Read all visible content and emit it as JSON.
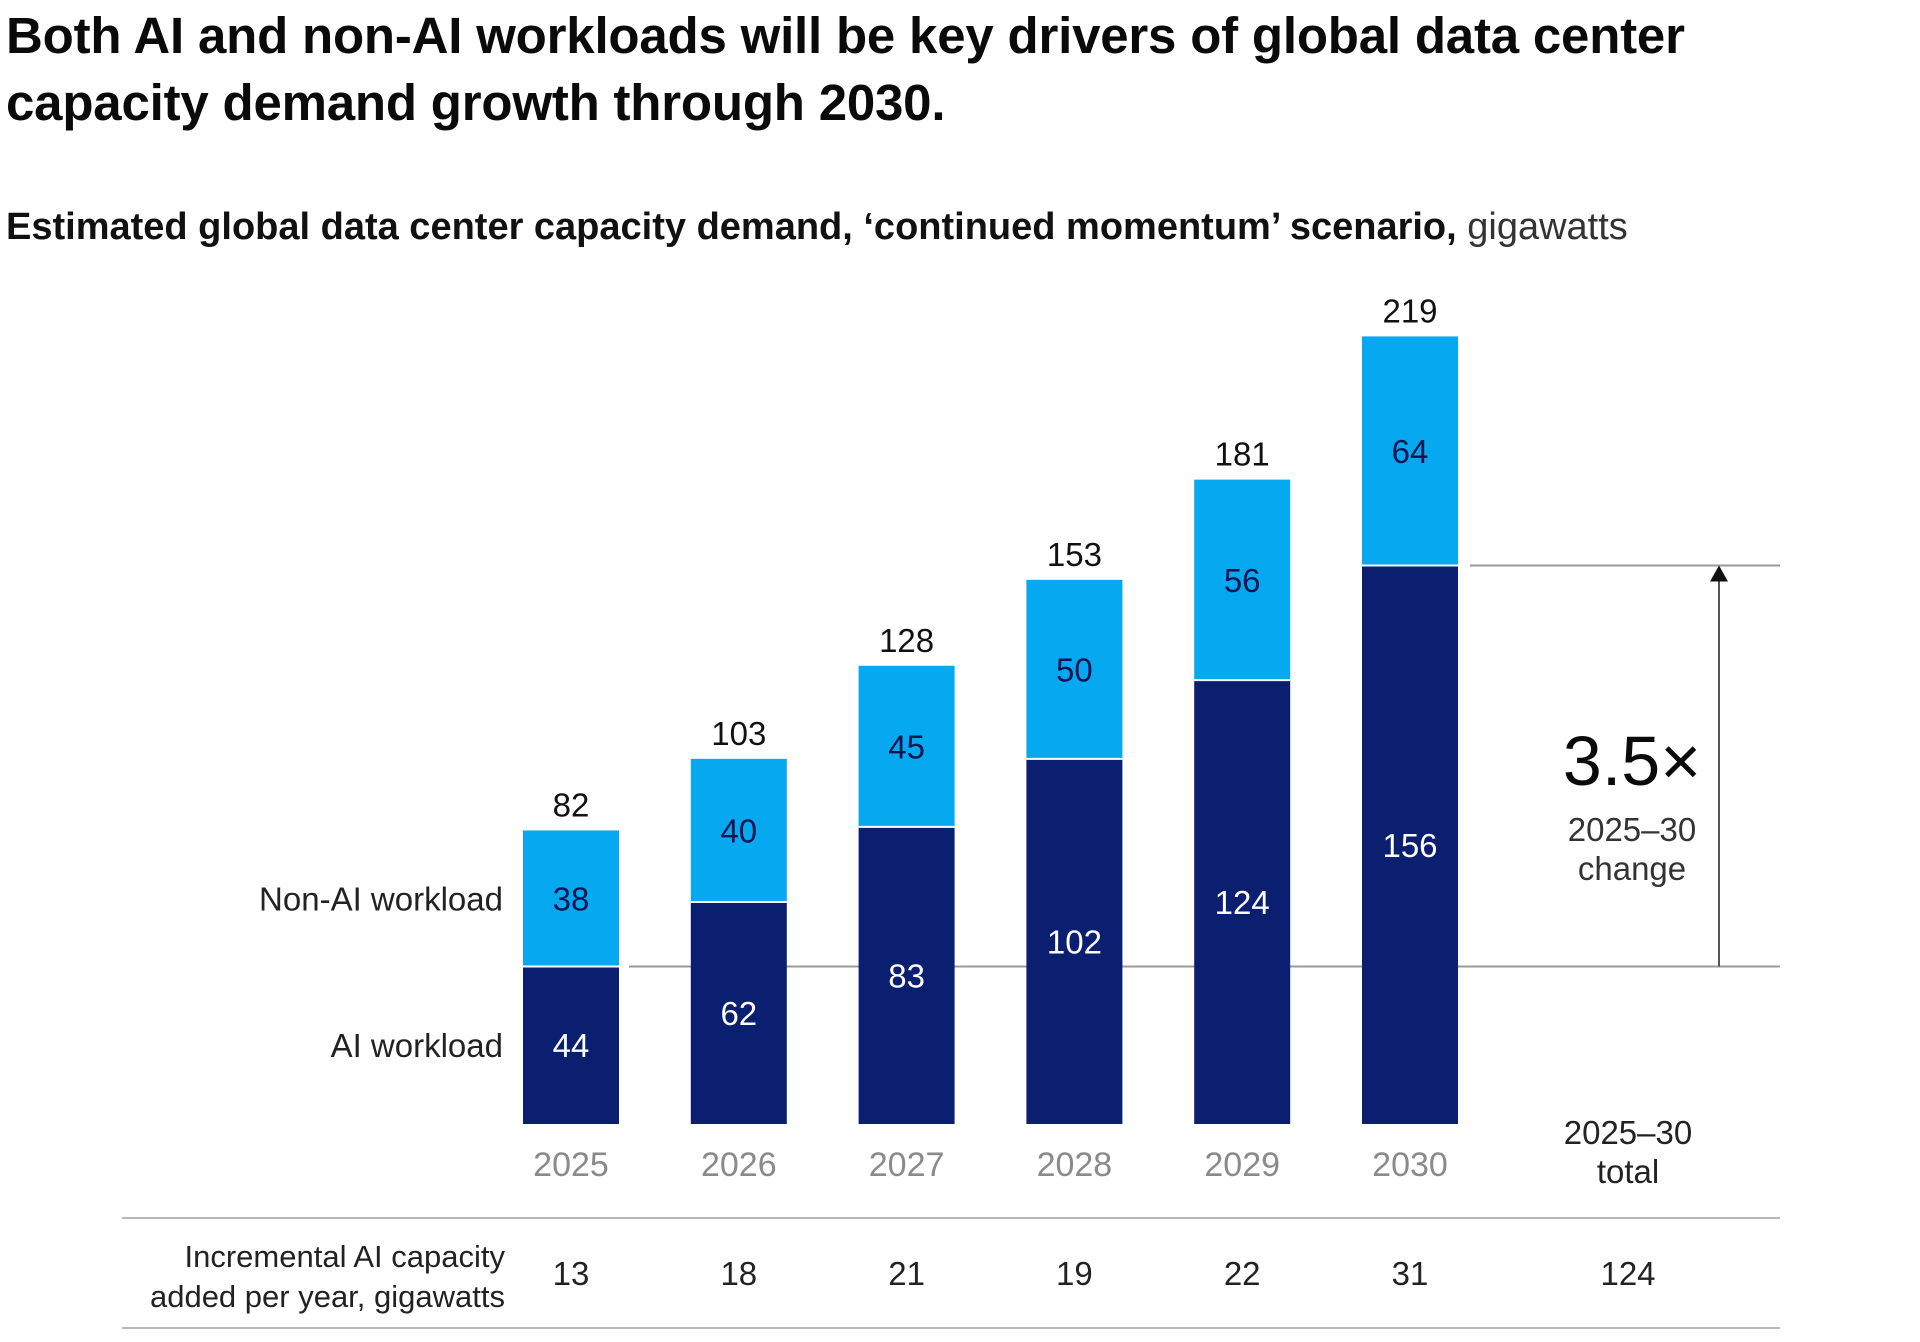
{
  "title": "Both AI and non-AI workloads will be key drivers of global data center capacity demand growth through 2030.",
  "subtitle": {
    "main": "Estimated global data center capacity demand, ‘continued momentum’ scenario,",
    "unit": "gigawatts"
  },
  "chart_data": {
    "type": "bar",
    "stacked": true,
    "categories": [
      "2025",
      "2026",
      "2027",
      "2028",
      "2029",
      "2030"
    ],
    "series": [
      {
        "name": "AI workload",
        "values": [
          44,
          62,
          83,
          102,
          124,
          156
        ],
        "color": "#0b1f70"
      },
      {
        "name": "Non-AI workload",
        "values": [
          38,
          40,
          45,
          50,
          56,
          64
        ],
        "color": "#06a8f0"
      }
    ],
    "totals": [
      82,
      103,
      128,
      153,
      181,
      219
    ],
    "ylim": [
      0,
      219
    ],
    "grid": false,
    "legend": "left, inline with first bar",
    "annotation": {
      "value": "3.5×",
      "label_line1": "2025–30",
      "label_line2": "change"
    },
    "table": {
      "row_label_line1": "Incremental AI capacity",
      "row_label_line2": "added per year, gigawatts",
      "total_header_line1": "2025–30",
      "total_header_line2": "total",
      "values": [
        "13",
        "18",
        "21",
        "19",
        "22",
        "31"
      ],
      "total": "124"
    }
  }
}
